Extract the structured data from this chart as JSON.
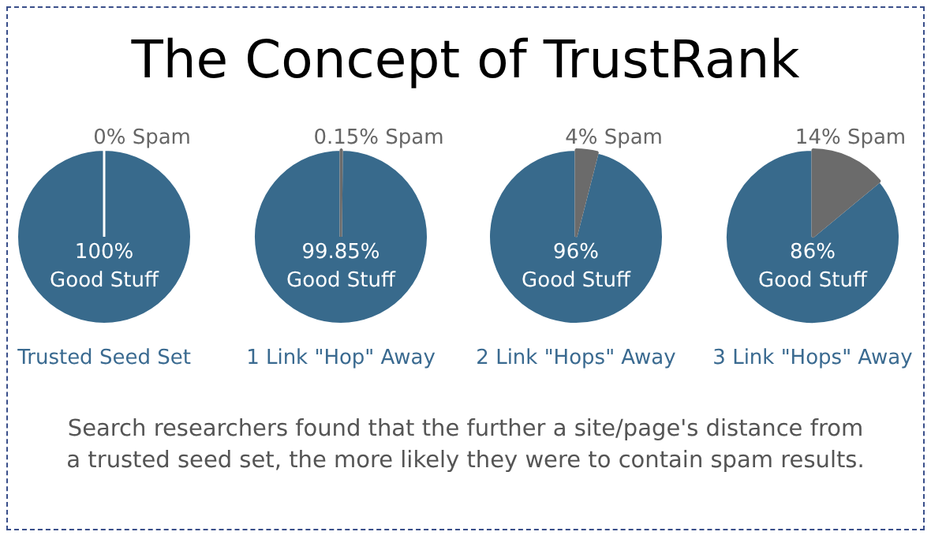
{
  "chart_data": [
    {
      "type": "other",
      "title": "The Concept of TrustRank",
      "annotations": [
        "Search researchers found that the further a site/page's distance from a trusted seed set, the more likely they were to contain spam results."
      ]
    },
    {
      "type": "pie",
      "xlabel": "Trusted Seed Set",
      "categories": [
        "Spam",
        "Good Stuff"
      ],
      "values": [
        0,
        100
      ],
      "colors": [
        "#6b6b6b",
        "#386a8c"
      ],
      "value_labels": [
        "0%",
        "100%"
      ]
    },
    {
      "type": "pie",
      "xlabel": "1 Link \"Hop\" Away",
      "categories": [
        "Spam",
        "Good Stuff"
      ],
      "values": [
        0.15,
        99.85
      ],
      "colors": [
        "#6b6b6b",
        "#386a8c"
      ],
      "value_labels": [
        "0.15%",
        "99.85%"
      ]
    },
    {
      "type": "pie",
      "xlabel": "2 Link \"Hops\" Away",
      "categories": [
        "Spam",
        "Good Stuff"
      ],
      "values": [
        4,
        96
      ],
      "colors": [
        "#6b6b6b",
        "#386a8c"
      ],
      "value_labels": [
        "4%",
        "96%"
      ]
    },
    {
      "type": "pie",
      "xlabel": "3 Link \"Hops\" Away",
      "categories": [
        "Spam",
        "Good Stuff"
      ],
      "values": [
        14,
        86
      ],
      "colors": [
        "#6b6b6b",
        "#386a8c"
      ],
      "value_labels": [
        "14%",
        "86%"
      ]
    }
  ]
}
